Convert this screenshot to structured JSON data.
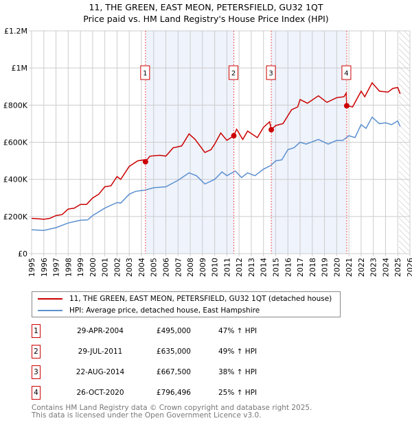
{
  "title": "11, THE GREEN, EAST MEON, PETERSFIELD, GU32 1QT",
  "subtitle": "Price paid vs. HM Land Registry's House Price Index (HPI)",
  "colors": {
    "property": "#cc0000",
    "hpi": "#5b8fd0",
    "shade": "#eef3fc"
  },
  "chart_data": {
    "type": "line",
    "title": "11, THE GREEN, EAST MEON, PETERSFIELD, GU32 1QT",
    "subtitle": "Price paid vs. HM Land Registry's House Price Index (HPI)",
    "xlim": [
      1995,
      2026
    ],
    "ylim": [
      0,
      1200000
    ],
    "yticks": [
      {
        "v": 0,
        "label": "£0"
      },
      {
        "v": 200000,
        "label": "£200K"
      },
      {
        "v": 400000,
        "label": "£400K"
      },
      {
        "v": 600000,
        "label": "£600K"
      },
      {
        "v": 800000,
        "label": "£800K"
      },
      {
        "v": 1000000,
        "label": "£1M"
      },
      {
        "v": 1200000,
        "label": "£1.2M"
      }
    ],
    "xticks": [
      "1995",
      "1996",
      "1997",
      "1998",
      "1999",
      "2000",
      "2001",
      "2002",
      "2003",
      "2004",
      "2005",
      "2006",
      "2007",
      "2008",
      "2009",
      "2010",
      "2011",
      "2012",
      "2013",
      "2014",
      "2015",
      "2016",
      "2017",
      "2018",
      "2019",
      "2020",
      "2021",
      "2022",
      "2023",
      "2024",
      "2025",
      "2026"
    ],
    "grid": true,
    "legend_position": "below",
    "series": [
      {
        "name": "11, THE GREEN, EAST MEON, PETERSFIELD, GU32 1QT (detached house)",
        "color": "#cc0000",
        "points": [
          [
            1995,
            190000
          ],
          [
            1995.5,
            188000
          ],
          [
            1996,
            185000
          ],
          [
            1996.5,
            190000
          ],
          [
            1997,
            205000
          ],
          [
            1997.5,
            210000
          ],
          [
            1998,
            240000
          ],
          [
            1998.5,
            245000
          ],
          [
            1999,
            265000
          ],
          [
            1999.5,
            265000
          ],
          [
            2000,
            300000
          ],
          [
            2000.5,
            320000
          ],
          [
            2001,
            360000
          ],
          [
            2001.5,
            365000
          ],
          [
            2002,
            415000
          ],
          [
            2002.3,
            400000
          ],
          [
            2002.7,
            440000
          ],
          [
            2003,
            470000
          ],
          [
            2003.7,
            500000
          ],
          [
            2004.2,
            505000
          ],
          [
            2004.33,
            495000
          ],
          [
            2004.7,
            525000
          ],
          [
            2005.5,
            530000
          ],
          [
            2006,
            525000
          ],
          [
            2006.6,
            570000
          ],
          [
            2007.3,
            580000
          ],
          [
            2007.9,
            645000
          ],
          [
            2008.4,
            615000
          ],
          [
            2009.2,
            545000
          ],
          [
            2009.7,
            560000
          ],
          [
            2010,
            590000
          ],
          [
            2010.5,
            650000
          ],
          [
            2011,
            610000
          ],
          [
            2011.57,
            635000
          ],
          [
            2011.8,
            670000
          ],
          [
            2012.3,
            615000
          ],
          [
            2012.7,
            660000
          ],
          [
            2013.5,
            625000
          ],
          [
            2014,
            680000
          ],
          [
            2014.5,
            710000
          ],
          [
            2014.64,
            667500
          ],
          [
            2015,
            690000
          ],
          [
            2015.6,
            700000
          ],
          [
            2016.3,
            775000
          ],
          [
            2016.8,
            790000
          ],
          [
            2017,
            830000
          ],
          [
            2017.6,
            810000
          ],
          [
            2018.5,
            850000
          ],
          [
            2019.2,
            815000
          ],
          [
            2020,
            840000
          ],
          [
            2020.6,
            845000
          ],
          [
            2020.78,
            865000
          ],
          [
            2020.82,
            796496
          ],
          [
            2021.3,
            790000
          ],
          [
            2022,
            875000
          ],
          [
            2022.3,
            845000
          ],
          [
            2022.9,
            920000
          ],
          [
            2023.5,
            875000
          ],
          [
            2024.2,
            870000
          ],
          [
            2024.6,
            890000
          ],
          [
            2025,
            895000
          ],
          [
            2025.2,
            860000
          ]
        ]
      },
      {
        "name": "HPI: Average price, detached house, East Hampshire",
        "color": "#5b8fd0",
        "points": [
          [
            1995,
            128000
          ],
          [
            1996,
            125000
          ],
          [
            1997,
            140000
          ],
          [
            1998,
            165000
          ],
          [
            1999,
            180000
          ],
          [
            1999.6,
            182000
          ],
          [
            2000,
            205000
          ],
          [
            2001,
            245000
          ],
          [
            2002,
            275000
          ],
          [
            2002.3,
            272000
          ],
          [
            2003,
            320000
          ],
          [
            2003.5,
            335000
          ],
          [
            2004,
            340000
          ],
          [
            2004.3,
            342000
          ],
          [
            2005,
            355000
          ],
          [
            2006,
            360000
          ],
          [
            2007,
            395000
          ],
          [
            2007.9,
            435000
          ],
          [
            2008.5,
            420000
          ],
          [
            2009.2,
            375000
          ],
          [
            2010,
            400000
          ],
          [
            2010.6,
            440000
          ],
          [
            2011,
            420000
          ],
          [
            2011.7,
            445000
          ],
          [
            2012.2,
            410000
          ],
          [
            2012.7,
            435000
          ],
          [
            2013.3,
            420000
          ],
          [
            2014,
            455000
          ],
          [
            2014.6,
            475000
          ],
          [
            2015,
            500000
          ],
          [
            2015.5,
            505000
          ],
          [
            2016,
            560000
          ],
          [
            2016.5,
            570000
          ],
          [
            2017,
            600000
          ],
          [
            2017.5,
            590000
          ],
          [
            2018.5,
            615000
          ],
          [
            2019.3,
            590000
          ],
          [
            2020,
            610000
          ],
          [
            2020.5,
            610000
          ],
          [
            2021,
            635000
          ],
          [
            2021.5,
            625000
          ],
          [
            2022,
            695000
          ],
          [
            2022.4,
            675000
          ],
          [
            2022.9,
            735000
          ],
          [
            2023.5,
            700000
          ],
          [
            2024,
            705000
          ],
          [
            2024.5,
            695000
          ],
          [
            2025,
            715000
          ],
          [
            2025.2,
            685000
          ]
        ]
      }
    ],
    "sales": [
      {
        "id": "1",
        "x": 2004.33,
        "price": 495000
      },
      {
        "id": "2",
        "x": 2011.57,
        "price": 635000
      },
      {
        "id": "3",
        "x": 2014.64,
        "price": 667500
      },
      {
        "id": "4",
        "x": 2020.82,
        "price": 796496
      }
    ],
    "shaded_ranges": [
      [
        2004.33,
        2011.57
      ],
      [
        2014.64,
        2020.82
      ]
    ],
    "hatched_from": 2025.1
  },
  "legend": {
    "property": "11, THE GREEN, EAST MEON, PETERSFIELD, GU32 1QT (detached house)",
    "hpi": "HPI: Average price, detached house, East Hampshire"
  },
  "transactions": [
    {
      "num": "1",
      "date": "29-APR-2004",
      "price": "£495,000",
      "hpi": "47% ↑ HPI"
    },
    {
      "num": "2",
      "date": "29-JUL-2011",
      "price": "£635,000",
      "hpi": "49% ↑ HPI"
    },
    {
      "num": "3",
      "date": "22-AUG-2014",
      "price": "£667,500",
      "hpi": "38% ↑ HPI"
    },
    {
      "num": "4",
      "date": "26-OCT-2020",
      "price": "£796,496",
      "hpi": "25% ↑ HPI"
    }
  ],
  "footer": {
    "line1": "Contains HM Land Registry data © Crown copyright and database right 2025.",
    "line2": "This data is licensed under the Open Government Licence v3.0."
  }
}
